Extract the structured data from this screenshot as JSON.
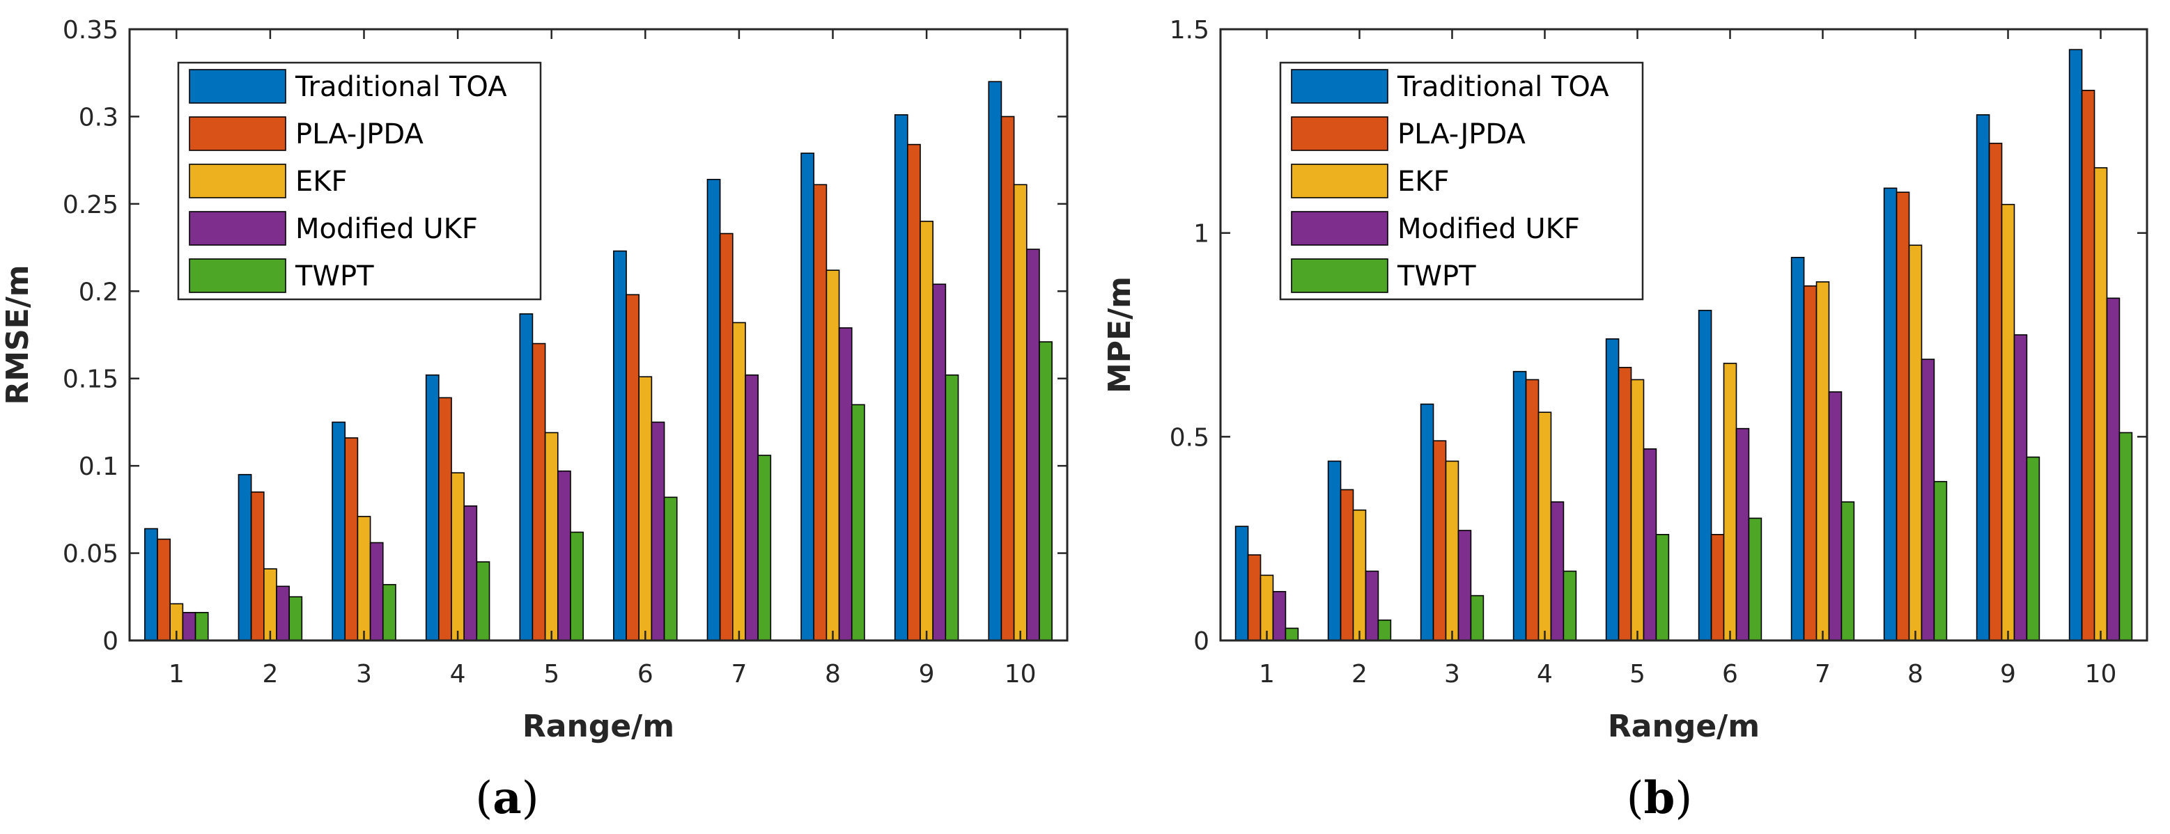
{
  "chart_data": [
    {
      "type": "bar",
      "panel_label": "a",
      "categories": [
        "1",
        "2",
        "3",
        "4",
        "5",
        "6",
        "7",
        "8",
        "9",
        "10"
      ],
      "series": [
        {
          "name": "Traditional TOA",
          "color": "#0072BD",
          "values": [
            0.064,
            0.095,
            0.125,
            0.152,
            0.187,
            0.223,
            0.264,
            0.279,
            0.301,
            0.32
          ]
        },
        {
          "name": "PLA-JPDA",
          "color": "#D95319",
          "values": [
            0.058,
            0.085,
            0.116,
            0.139,
            0.17,
            0.198,
            0.233,
            0.261,
            0.284,
            0.3
          ]
        },
        {
          "name": "EKF",
          "color": "#EDB120",
          "values": [
            0.021,
            0.041,
            0.071,
            0.096,
            0.119,
            0.151,
            0.182,
            0.212,
            0.24,
            0.261
          ]
        },
        {
          "name": "Modified UKF",
          "color": "#7E2F8E",
          "values": [
            0.016,
            0.031,
            0.056,
            0.077,
            0.097,
            0.125,
            0.152,
            0.179,
            0.204,
            0.224
          ]
        },
        {
          "name": "TWPT",
          "color": "#4DA626",
          "values": [
            0.016,
            0.025,
            0.032,
            0.045,
            0.062,
            0.082,
            0.106,
            0.135,
            0.152,
            0.171
          ]
        }
      ],
      "xlabel": "Range/m",
      "ylabel": "RMSE/m",
      "ylim": [
        0,
        0.35
      ],
      "yticks": [
        0,
        0.05,
        0.1,
        0.15,
        0.2,
        0.25,
        0.3,
        0.35
      ],
      "ytick_labels": [
        "0",
        "0.05",
        "0.1",
        "0.15",
        "0.2",
        "0.25",
        "0.3",
        "0.35"
      ],
      "legend_position": "top-left"
    },
    {
      "type": "bar",
      "panel_label": "b",
      "categories": [
        "1",
        "2",
        "3",
        "4",
        "5",
        "6",
        "7",
        "8",
        "9",
        "10"
      ],
      "series": [
        {
          "name": "Traditional TOA",
          "color": "#0072BD",
          "values": [
            0.28,
            0.44,
            0.58,
            0.66,
            0.74,
            0.81,
            0.94,
            1.11,
            1.29,
            1.45
          ]
        },
        {
          "name": "PLA-JPDA",
          "color": "#D95319",
          "values": [
            0.21,
            0.37,
            0.49,
            0.64,
            0.67,
            0.26,
            0.87,
            1.1,
            1.22,
            1.35
          ]
        },
        {
          "name": "EKF",
          "color": "#EDB120",
          "values": [
            0.16,
            0.32,
            0.44,
            0.56,
            0.64,
            0.68,
            0.88,
            0.97,
            1.07,
            1.16
          ]
        },
        {
          "name": "Modified UKF",
          "color": "#7E2F8E",
          "values": [
            0.12,
            0.17,
            0.27,
            0.34,
            0.47,
            0.52,
            0.61,
            0.69,
            0.75,
            0.84
          ]
        },
        {
          "name": "TWPT",
          "color": "#4DA626",
          "values": [
            0.03,
            0.05,
            0.11,
            0.17,
            0.26,
            0.3,
            0.34,
            0.39,
            0.45,
            0.51
          ]
        }
      ],
      "xlabel": "Range/m",
      "ylabel": "MPE/m",
      "ylim": [
        0,
        1.5
      ],
      "yticks": [
        0,
        0.5,
        1,
        1.5
      ],
      "ytick_labels": [
        "0",
        "0.5",
        "1",
        "1.5"
      ],
      "legend_position": "top-left"
    }
  ]
}
